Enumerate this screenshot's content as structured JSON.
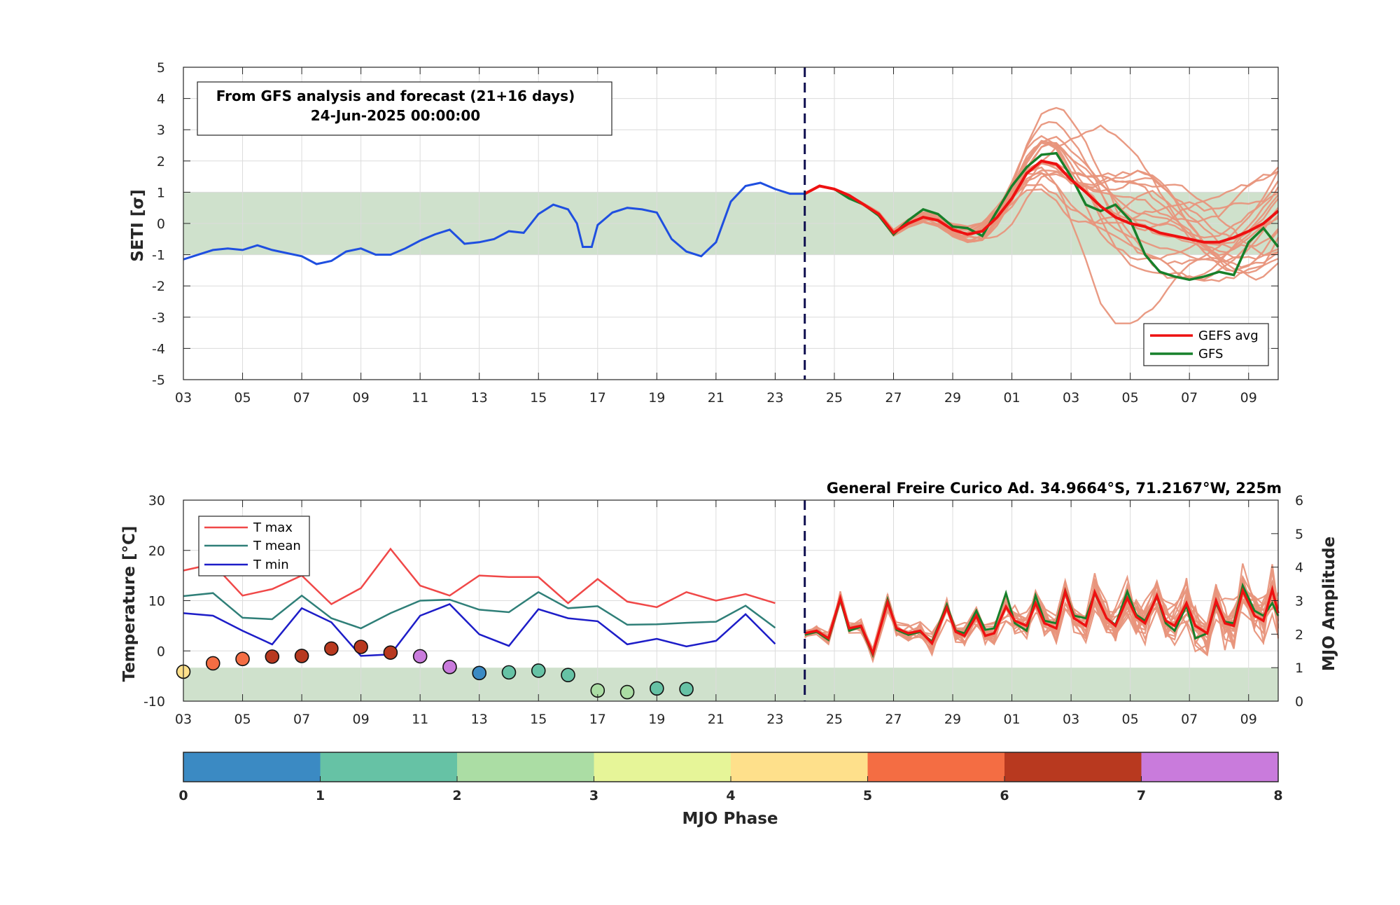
{
  "colors": {
    "analysis": "#1f4fe0",
    "gefs_avg": "#ee1111",
    "gfs": "#17802a",
    "member": "#e8957c",
    "band": "#cfe1cc",
    "tmax": "#f04848",
    "tmean": "#2f7f78",
    "tmin": "#1d1dc8",
    "forecast_line": "#101050",
    "mjo_phase_colors": [
      "#3b8ac3",
      "#66c2a5",
      "#abdda4",
      "#e6f598",
      "#fee08b",
      "#f46d43",
      "#b8391f",
      "#c97bdc"
    ]
  },
  "top": {
    "ylabel": "SETI [σ]",
    "box_line1": "From GFS analysis and forecast (21+16 days)",
    "box_line2": "24-Jun-2025 00:00:00",
    "legend": [
      "GEFS avg",
      "GFS"
    ]
  },
  "bottom": {
    "ylabel_left": "Temperature [°C]",
    "ylabel_right": "MJO Amplitude",
    "station": "General Freire Curico Ad. 34.9664°S, 71.2167°W, 225m",
    "legend": [
      "T max",
      "T mean",
      "T min"
    ]
  },
  "colorbar": {
    "label": "MJO Phase",
    "ticks": [
      "0",
      "1",
      "2",
      "3",
      "4",
      "5",
      "6",
      "7",
      "8"
    ]
  },
  "chart_data": [
    {
      "type": "line",
      "name": "SETI",
      "ylabel": "SETI [σ]",
      "ylim": [
        -5,
        5
      ],
      "xlim_day": [
        3,
        40
      ],
      "x_unit": "day of June 2025 (values > 30 are July)",
      "x_tick_labels": [
        "03",
        "05",
        "07",
        "09",
        "11",
        "13",
        "15",
        "17",
        "19",
        "21",
        "23",
        "25",
        "27",
        "29",
        "01",
        "03",
        "05",
        "07",
        "09"
      ],
      "y_tick_labels": [
        "5",
        "4",
        "3",
        "2",
        "1",
        "0",
        "-1",
        "-2",
        "-3",
        "-4",
        "-5"
      ],
      "grid": true,
      "band": [
        -1,
        1
      ],
      "forecast_start_day": 24,
      "legend_position": "bottom-right",
      "analysis": [
        [
          3,
          -1.15
        ],
        [
          3.5,
          -1.0
        ],
        [
          4,
          -0.85
        ],
        [
          4.5,
          -0.8
        ],
        [
          5,
          -0.85
        ],
        [
          5.5,
          -0.7
        ],
        [
          6,
          -0.85
        ],
        [
          6.5,
          -0.95
        ],
        [
          7,
          -1.05
        ],
        [
          7.5,
          -1.3
        ],
        [
          8,
          -1.2
        ],
        [
          8.5,
          -0.9
        ],
        [
          9,
          -0.8
        ],
        [
          9.5,
          -1.0
        ],
        [
          10,
          -1.0
        ],
        [
          10.5,
          -0.8
        ],
        [
          11,
          -0.55
        ],
        [
          11.5,
          -0.35
        ],
        [
          12,
          -0.2
        ],
        [
          12.5,
          -0.65
        ],
        [
          13,
          -0.6
        ],
        [
          13.5,
          -0.5
        ],
        [
          14,
          -0.25
        ],
        [
          14.5,
          -0.3
        ],
        [
          15,
          0.3
        ],
        [
          15.5,
          0.6
        ],
        [
          16,
          0.45
        ],
        [
          16.3,
          0.0
        ],
        [
          16.5,
          -0.75
        ],
        [
          16.8,
          -0.75
        ],
        [
          17,
          -0.05
        ],
        [
          17.5,
          0.35
        ],
        [
          18,
          0.5
        ],
        [
          18.5,
          0.45
        ],
        [
          19,
          0.35
        ],
        [
          19.5,
          -0.5
        ],
        [
          20,
          -0.9
        ],
        [
          20.5,
          -1.05
        ],
        [
          21,
          -0.6
        ],
        [
          21.5,
          0.7
        ],
        [
          22,
          1.2
        ],
        [
          22.5,
          1.3
        ],
        [
          23,
          1.1
        ],
        [
          23.5,
          0.95
        ],
        [
          24,
          0.95
        ]
      ],
      "gefs_avg": [
        [
          24,
          0.95
        ],
        [
          24.5,
          1.2
        ],
        [
          25,
          1.1
        ],
        [
          25.5,
          0.9
        ],
        [
          26,
          0.6
        ],
        [
          26.5,
          0.3
        ],
        [
          27,
          -0.3
        ],
        [
          27.5,
          0.0
        ],
        [
          28,
          0.2
        ],
        [
          28.5,
          0.1
        ],
        [
          29,
          -0.2
        ],
        [
          29.5,
          -0.35
        ],
        [
          30,
          -0.25
        ],
        [
          30.5,
          0.2
        ],
        [
          31,
          0.8
        ],
        [
          31.5,
          1.6
        ],
        [
          32,
          2.0
        ],
        [
          32.5,
          1.9
        ],
        [
          33,
          1.4
        ],
        [
          33.5,
          1.0
        ],
        [
          34,
          0.55
        ],
        [
          34.5,
          0.2
        ],
        [
          35,
          0.0
        ],
        [
          35.5,
          -0.1
        ],
        [
          36,
          -0.3
        ],
        [
          36.5,
          -0.4
        ],
        [
          37,
          -0.5
        ],
        [
          37.5,
          -0.6
        ],
        [
          38,
          -0.6
        ],
        [
          38.5,
          -0.45
        ],
        [
          39,
          -0.25
        ],
        [
          39.5,
          0.0
        ],
        [
          40,
          0.4
        ]
      ],
      "gfs": [
        [
          24,
          0.95
        ],
        [
          24.5,
          1.2
        ],
        [
          25,
          1.1
        ],
        [
          25.5,
          0.8
        ],
        [
          26,
          0.6
        ],
        [
          26.5,
          0.25
        ],
        [
          27,
          -0.35
        ],
        [
          27.5,
          0.1
        ],
        [
          28,
          0.45
        ],
        [
          28.5,
          0.3
        ],
        [
          29,
          -0.1
        ],
        [
          29.5,
          -0.15
        ],
        [
          30,
          -0.4
        ],
        [
          30.5,
          0.4
        ],
        [
          31,
          1.2
        ],
        [
          31.5,
          1.8
        ],
        [
          32,
          2.2
        ],
        [
          32.5,
          2.25
        ],
        [
          33,
          1.5
        ],
        [
          33.5,
          0.6
        ],
        [
          34,
          0.4
        ],
        [
          34.5,
          0.6
        ],
        [
          35,
          0.1
        ],
        [
          35.5,
          -1.0
        ],
        [
          36,
          -1.55
        ],
        [
          36.5,
          -1.7
        ],
        [
          37,
          -1.8
        ],
        [
          37.5,
          -1.7
        ],
        [
          38,
          -1.55
        ],
        [
          38.5,
          -1.65
        ],
        [
          39,
          -0.6
        ],
        [
          39.5,
          -0.15
        ],
        [
          40,
          -0.75
        ]
      ],
      "members_count": 20
    },
    {
      "type": "line",
      "name": "Temperature",
      "ylabel": "Temperature [°C]",
      "ylim": [
        -10,
        30
      ],
      "y_tick_labels": [
        "30",
        "20",
        "10",
        "0",
        "-10"
      ],
      "y2label": "MJO Amplitude",
      "y2lim": [
        0,
        6
      ],
      "y2_tick_labels": [
        "6",
        "5",
        "4",
        "3",
        "2",
        "1",
        "0"
      ],
      "grid": true,
      "band_mjo_amplitude": [
        0,
        1
      ],
      "legend_position": "top-left",
      "days": [
        3,
        4,
        5,
        6,
        7,
        8,
        9,
        10,
        11,
        12,
        13,
        14,
        15,
        16,
        17,
        18,
        19,
        20,
        21,
        22,
        23
      ],
      "t_max": [
        16,
        17.3,
        11,
        12.3,
        15,
        9.3,
        12.5,
        20.3,
        13,
        11,
        15,
        14.7,
        14.7,
        9.5,
        14.3,
        9.8,
        8.7,
        11.7,
        10,
        11.3,
        9.5
      ],
      "t_mean": [
        10.9,
        11.5,
        6.6,
        6.3,
        11,
        6.5,
        4.5,
        7.5,
        10,
        10.2,
        8.2,
        7.7,
        11.7,
        8.5,
        8.9,
        5.2,
        5.3,
        5.6,
        5.8,
        9,
        4.6
      ],
      "t_min": [
        7.5,
        7,
        4,
        1.3,
        8.5,
        5.7,
        -1,
        -0.7,
        7,
        9.3,
        3.3,
        1,
        8.3,
        6.5,
        5.9,
        1.3,
        2.4,
        0.9,
        2,
        7.3,
        1.4
      ],
      "mjo": [
        {
          "day": 3,
          "amp": 0.88,
          "phase": 4.3
        },
        {
          "day": 4,
          "amp": 1.13,
          "phase": 5.4
        },
        {
          "day": 5,
          "amp": 1.26,
          "phase": 5.4
        },
        {
          "day": 6,
          "amp": 1.33,
          "phase": 6.4
        },
        {
          "day": 7,
          "amp": 1.35,
          "phase": 6.4
        },
        {
          "day": 8,
          "amp": 1.57,
          "phase": 6.4
        },
        {
          "day": 9,
          "amp": 1.62,
          "phase": 6.4
        },
        {
          "day": 10,
          "amp": 1.45,
          "phase": 6.4
        },
        {
          "day": 11,
          "amp": 1.34,
          "phase": 7.4
        },
        {
          "day": 12,
          "amp": 1.02,
          "phase": 7.4
        },
        {
          "day": 13,
          "amp": 0.84,
          "phase": 0.4
        },
        {
          "day": 14,
          "amp": 0.86,
          "phase": 1.4
        },
        {
          "day": 15,
          "amp": 0.91,
          "phase": 1.4
        },
        {
          "day": 16,
          "amp": 0.78,
          "phase": 1.4
        },
        {
          "day": 17,
          "amp": 0.32,
          "phase": 2.4
        },
        {
          "day": 18,
          "amp": 0.27,
          "phase": 2.4
        },
        {
          "day": 19,
          "amp": 0.38,
          "phase": 1.4
        },
        {
          "day": 20,
          "amp": 0.36,
          "phase": 1.4
        }
      ],
      "forecast_avg": [
        [
          24,
          3.5
        ],
        [
          24.4,
          4
        ],
        [
          24.8,
          2.5
        ],
        [
          25.2,
          10.5
        ],
        [
          25.5,
          4.5
        ],
        [
          25.9,
          5
        ],
        [
          26.3,
          -0.5
        ],
        [
          26.8,
          9.7
        ],
        [
          27.1,
          4.5
        ],
        [
          27.5,
          3.5
        ],
        [
          27.9,
          4
        ],
        [
          28.3,
          1.5
        ],
        [
          28.8,
          8.6
        ],
        [
          29.1,
          3.8
        ],
        [
          29.4,
          3
        ],
        [
          29.8,
          7
        ],
        [
          30.1,
          3
        ],
        [
          30.4,
          3.5
        ],
        [
          30.8,
          8.8
        ],
        [
          31.1,
          6
        ],
        [
          31.5,
          5
        ],
        [
          31.8,
          9.5
        ],
        [
          32.1,
          5.5
        ],
        [
          32.5,
          4.5
        ],
        [
          32.8,
          11.8
        ],
        [
          33.1,
          6.5
        ],
        [
          33.5,
          5
        ],
        [
          33.8,
          11.7
        ],
        [
          34.2,
          6.5
        ],
        [
          34.5,
          5
        ],
        [
          34.9,
          10.5
        ],
        [
          35.2,
          6.8
        ],
        [
          35.5,
          5.5
        ],
        [
          35.9,
          11
        ],
        [
          36.2,
          6
        ],
        [
          36.5,
          5
        ],
        [
          36.9,
          9.5
        ],
        [
          37.2,
          5
        ],
        [
          37.6,
          3.5
        ],
        [
          37.9,
          10
        ],
        [
          38.2,
          5.5
        ],
        [
          38.5,
          5
        ],
        [
          38.8,
          12
        ],
        [
          39.2,
          7
        ],
        [
          39.5,
          6
        ],
        [
          39.8,
          12.2
        ],
        [
          40,
          7.5
        ]
      ],
      "forecast_gfs": [
        [
          24,
          3.2
        ],
        [
          24.4,
          3.8
        ],
        [
          24.8,
          2.2
        ],
        [
          25.2,
          10.2
        ],
        [
          25.5,
          4
        ],
        [
          25.9,
          4.8
        ],
        [
          26.3,
          -0.8
        ],
        [
          26.8,
          10.2
        ],
        [
          27.1,
          4.2
        ],
        [
          27.5,
          3.2
        ],
        [
          27.9,
          3.8
        ],
        [
          28.3,
          1.8
        ],
        [
          28.8,
          9.2
        ],
        [
          29.1,
          4
        ],
        [
          29.4,
          3.5
        ],
        [
          29.8,
          8
        ],
        [
          30.1,
          4.2
        ],
        [
          30.4,
          4.5
        ],
        [
          30.8,
          11.5
        ],
        [
          31.1,
          5.5
        ],
        [
          31.5,
          4
        ],
        [
          31.8,
          11
        ],
        [
          32.1,
          6
        ],
        [
          32.5,
          5.5
        ],
        [
          32.8,
          12
        ],
        [
          33.1,
          7
        ],
        [
          33.5,
          6.5
        ],
        [
          33.8,
          11.5
        ],
        [
          34.2,
          6.5
        ],
        [
          34.5,
          5.2
        ],
        [
          34.9,
          11.8
        ],
        [
          35.2,
          7.2
        ],
        [
          35.5,
          6
        ],
        [
          35.9,
          10.8
        ],
        [
          36.2,
          5.5
        ],
        [
          36.5,
          4
        ],
        [
          36.9,
          9
        ],
        [
          37.2,
          2.5
        ],
        [
          37.6,
          3.5
        ],
        [
          37.9,
          9.5
        ],
        [
          38.2,
          5.8
        ],
        [
          38.5,
          5.5
        ],
        [
          38.8,
          13
        ],
        [
          39.2,
          8
        ],
        [
          39.5,
          7
        ],
        [
          39.8,
          9.5
        ],
        [
          40,
          7
        ]
      ]
    }
  ]
}
